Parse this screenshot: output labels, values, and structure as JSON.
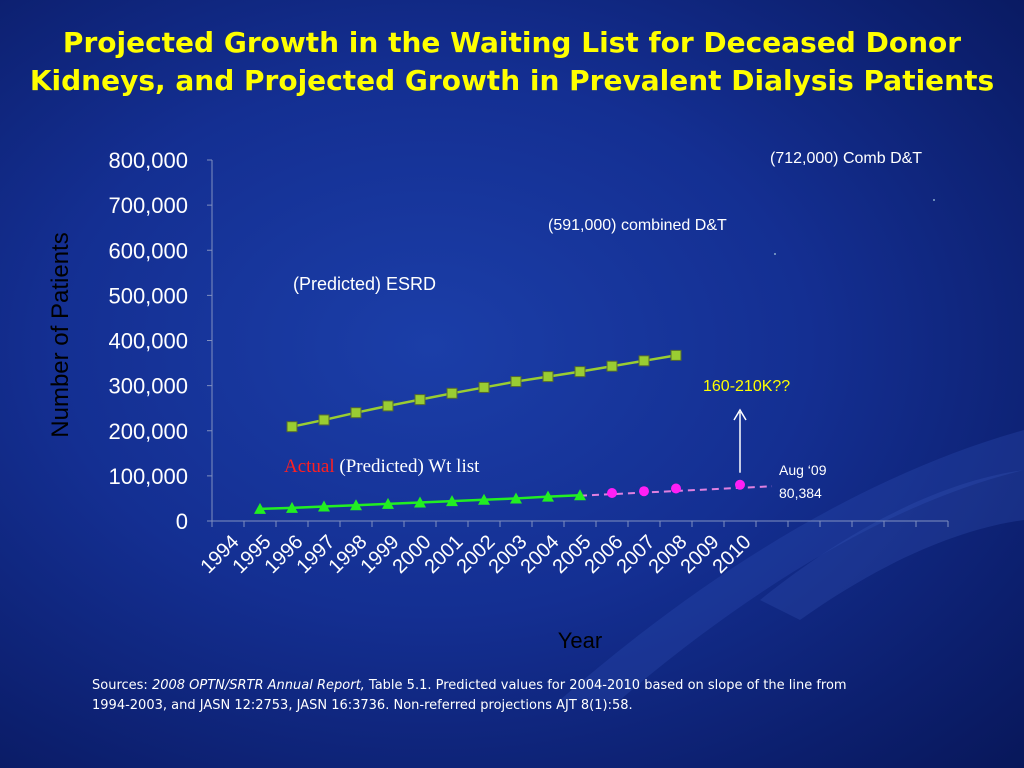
{
  "slide": {
    "title_line1": "Projected Growth in the Waiting List for Deceased Donor",
    "title_line2": "Kidneys, and Projected Growth in Prevalent Dialysis Patients"
  },
  "colors": {
    "background": "#142f92",
    "title": "#ffff00",
    "esrd_line": "#9acd32",
    "actual_line": "#22ee22",
    "predicted_line": "#ff1ff5",
    "predicted_dash": "#e080e0",
    "annotation_yellow": "#ffff00",
    "actual_label": "#ff2020"
  },
  "chart_data": {
    "type": "line",
    "ylabel": "Number of Patients",
    "xlabel": "Year",
    "ylim": [
      0,
      800000
    ],
    "yticks": [
      "0",
      "100,000",
      "200,000",
      "300,000",
      "400,000",
      "500,000",
      "600,000",
      "700,000",
      "800,000"
    ],
    "ytick_values": [
      0,
      100000,
      200000,
      300000,
      400000,
      500000,
      600000,
      700000,
      800000
    ],
    "categories": [
      "1994",
      "1995",
      "1996",
      "1997",
      "1998",
      "1999",
      "2000",
      "2001",
      "2002",
      "2003",
      "2004",
      "2005",
      "2006",
      "2007",
      "2008",
      "2009",
      "2010"
    ],
    "grid": false,
    "series": [
      {
        "key": "esrd",
        "x": [
          "1996",
          "1997",
          "1998",
          "1999",
          "2000",
          "2001",
          "2002",
          "2003",
          "2004",
          "2005",
          "2006",
          "2007",
          "2008"
        ],
        "values": [
          209000,
          224000,
          240000,
          255000,
          269000,
          283000,
          296000,
          309000,
          320000,
          331000,
          343000,
          355000,
          367000
        ]
      },
      {
        "key": "actual",
        "x": [
          "1995",
          "1996",
          "1997",
          "1998",
          "1999",
          "2000",
          "2001",
          "2002",
          "2003",
          "2004",
          "2005"
        ],
        "values": [
          27000,
          29000,
          32000,
          35000,
          38000,
          41000,
          44000,
          47000,
          50000,
          54000,
          57000
        ]
      },
      {
        "key": "predicted",
        "x": [
          "2006",
          "2007",
          "2008",
          "2010"
        ],
        "values": [
          62000,
          66000,
          72000,
          80384
        ]
      }
    ],
    "trend_dash": {
      "from": [
        "2005",
        56000
      ],
      "to": [
        "2011",
        77000
      ]
    },
    "annotations": {
      "comb_dt": "(712,000) Comb D&T",
      "combined_dt": "(591,000) combined D&T",
      "esrd_label": "(Predicted) ESRD",
      "actual_word": "Actual",
      "wt_list": "(Predicted) Wt list",
      "range_note": "160-210K??",
      "aug09_line1": "Aug ‘09",
      "aug09_line2": "80,384"
    }
  },
  "sources": {
    "prefix": "Sources: ",
    "report": "2008 OPTN/SRTR Annual Report,",
    "rest_line1": " Table 5.1. Predicted values for 2004-2010 based on slope of the line from",
    "line2": "1994-2003, and JASN 12:2753, JASN 16:3736.  Non-referred projections AJT 8(1):58."
  }
}
